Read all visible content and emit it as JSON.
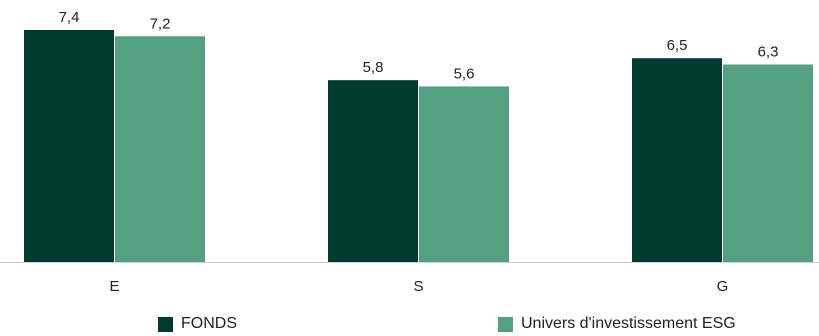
{
  "chart_data": {
    "type": "bar",
    "categories": [
      "E",
      "S",
      "G"
    ],
    "series": [
      {
        "name": "FONDS",
        "values": [
          "7,4",
          "5,8",
          "6,5"
        ],
        "numeric": [
          7.4,
          5.8,
          6.5
        ],
        "color": "#003d30"
      },
      {
        "name": "Univers d'investissement ESG",
        "values": [
          "7,2",
          "5,6",
          "6,3"
        ],
        "numeric": [
          7.2,
          5.6,
          6.3
        ],
        "color": "#55a080"
      }
    ],
    "title": "",
    "xlabel": "",
    "ylabel": "",
    "ylim": [
      0,
      7.4
    ],
    "grid": false,
    "legend_position": "bottom",
    "axis_line_color": "#d0d0d0"
  },
  "legend": {
    "items": [
      {
        "label": "FONDS",
        "color": "#003d30"
      },
      {
        "label": "Univers d'investissement ESG",
        "color": "#55a080"
      }
    ]
  }
}
